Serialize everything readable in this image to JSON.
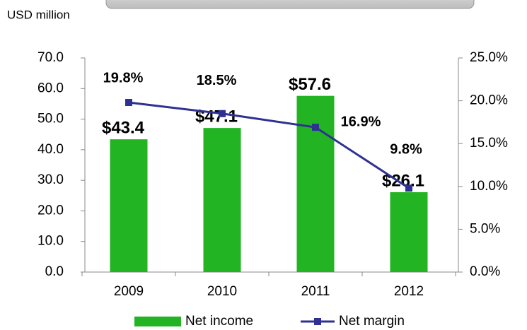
{
  "chart_data": {
    "type": "bar_line",
    "annotation": "USD million",
    "categories": [
      "2009",
      "2010",
      "2011",
      "2012"
    ],
    "series": [
      {
        "name": "Net income",
        "color": "#22b422",
        "type": "bar",
        "values": [
          43.4,
          47.1,
          57.6,
          26.1
        ],
        "value_labels": [
          "$43.4",
          "$47.1",
          "$57.6",
          "$26.1"
        ]
      },
      {
        "name": "Net margin",
        "color": "#2e3192",
        "type": "line",
        "axis": "y2",
        "label_color": "#6b1f6e",
        "values": [
          19.8,
          18.5,
          16.9,
          9.8
        ],
        "value_labels": [
          "19.8%",
          "18.5%",
          "16.9%",
          "9.8%"
        ]
      }
    ],
    "ylim": [
      0,
      70
    ],
    "yticks": [
      {
        "value": 0,
        "label": "0.0"
      },
      {
        "value": 10,
        "label": "10.0"
      },
      {
        "value": 20,
        "label": "20.0"
      },
      {
        "value": 30,
        "label": "30.0"
      },
      {
        "value": 40,
        "label": "40.0"
      },
      {
        "value": 50,
        "label": "50.0"
      },
      {
        "value": 60,
        "label": "60.0"
      },
      {
        "value": 70,
        "label": "70.0"
      }
    ],
    "y2lim": [
      0,
      25
    ],
    "y2ticks": [
      {
        "value": 0,
        "label": "0.0%"
      },
      {
        "value": 5,
        "label": "5.0%"
      },
      {
        "value": 10,
        "label": "10.0%"
      },
      {
        "value": 15,
        "label": "15.0%"
      },
      {
        "value": 20,
        "label": "20.0%"
      },
      {
        "value": 25,
        "label": "25.0%"
      }
    ],
    "legend": "bottom"
  }
}
